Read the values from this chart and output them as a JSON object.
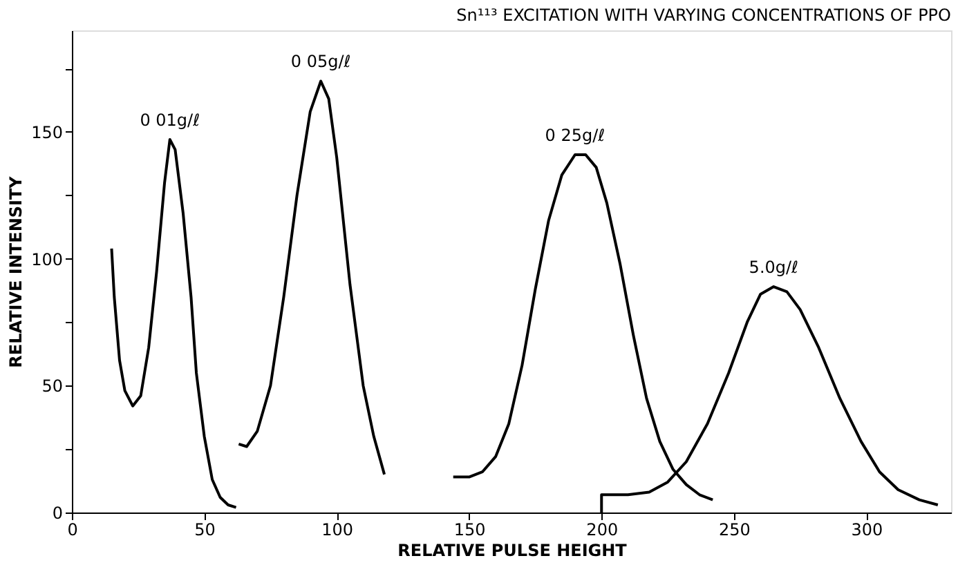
{
  "chart_data": {
    "type": "line",
    "title": "Sn¹¹³ EXCITATION WITH VARYING CONCENTRATIONS OF PPO",
    "xlabel": "RELATIVE PULSE HEIGHT",
    "ylabel": "RELATIVE INTENSITY",
    "xlim": [
      0,
      332
    ],
    "ylim": [
      0,
      190
    ],
    "xticks": [
      0,
      50,
      100,
      150,
      200,
      250,
      300
    ],
    "yticks": [
      0,
      {
        "value": 25,
        "label": null
      },
      50,
      {
        "value": 75,
        "label": null
      },
      100,
      {
        "value": 125,
        "label": null
      },
      150,
      {
        "value": 175,
        "label": null
      }
    ],
    "grid": false,
    "marker": "none",
    "line_style": "solid",
    "series": [
      {
        "name": "0 01g/ℓ",
        "color": "#000000",
        "x": [
          15,
          16,
          18,
          20,
          23,
          26,
          29,
          32,
          35,
          37,
          39,
          42,
          45,
          47,
          50,
          53,
          56,
          59,
          62
        ],
        "values": [
          104,
          85,
          60,
          48,
          42,
          46,
          65,
          95,
          130,
          147,
          143,
          118,
          85,
          55,
          30,
          13,
          6,
          3,
          2
        ]
      },
      {
        "name": "0 05g/ℓ",
        "color": "#000000",
        "x": [
          63,
          66,
          70,
          75,
          80,
          85,
          90,
          94,
          97,
          100,
          105,
          110,
          114,
          118
        ],
        "values": [
          27,
          26,
          32,
          50,
          85,
          125,
          158,
          170,
          163,
          140,
          90,
          50,
          30,
          15
        ]
      },
      {
        "name": "0 25g/ℓ",
        "color": "#000000",
        "x": [
          144,
          150,
          155,
          160,
          165,
          170,
          175,
          180,
          185,
          190,
          194,
          198,
          202,
          207,
          212,
          217,
          222,
          227,
          232,
          237,
          242
        ],
        "values": [
          14,
          14,
          16,
          22,
          35,
          58,
          88,
          115,
          133,
          141,
          141,
          136,
          122,
          98,
          70,
          45,
          28,
          17,
          11,
          7,
          5
        ]
      },
      {
        "name": "5.0g/ℓ",
        "color": "#000000",
        "x": [
          200,
          200,
          210,
          218,
          225,
          232,
          240,
          248,
          255,
          260,
          265,
          270,
          275,
          282,
          290,
          298,
          305,
          312,
          320,
          327
        ],
        "values": [
          0,
          7,
          7,
          8,
          12,
          20,
          35,
          55,
          75,
          86,
          89,
          87,
          80,
          65,
          45,
          28,
          16,
          9,
          5,
          3
        ]
      }
    ]
  }
}
